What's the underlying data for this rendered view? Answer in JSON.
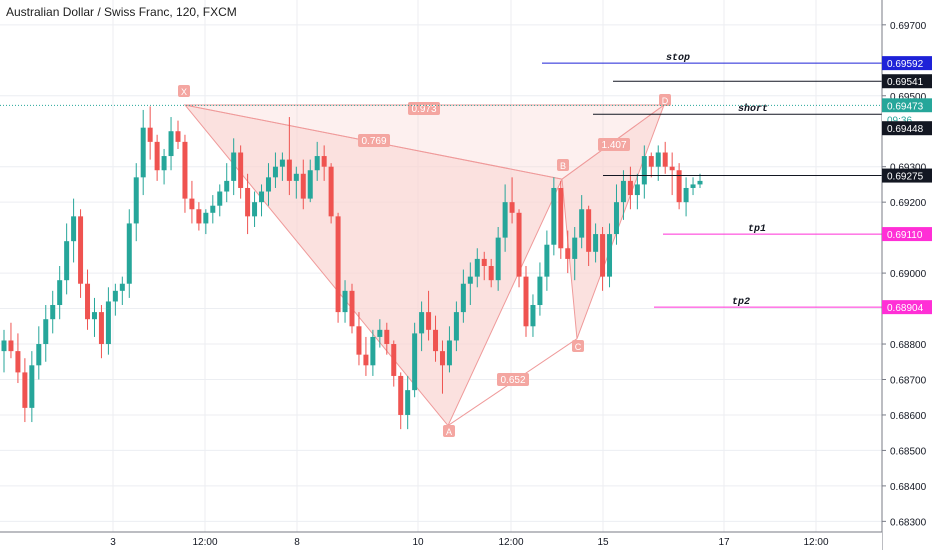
{
  "header": {
    "title": "Australian Dollar / Swiss Franc, 120, FXCM"
  },
  "colors": {
    "up": "#26a69a",
    "down": "#ef5350",
    "pattern_fill": "#f9d4d2",
    "pattern_stroke": "#ef9a9a",
    "stop": "#1e22d8",
    "tp": "#ff2fd6",
    "grid": "#eceef2",
    "axis_bg": "#ffffff"
  },
  "price_axis": {
    "ticks": [
      "0.69700",
      "0.69500",
      "0.69300",
      "0.69200",
      "0.69000",
      "0.68900",
      "0.68800",
      "0.68700",
      "0.68600",
      "0.68500",
      "0.68400",
      "0.68300"
    ],
    "hidden_note": "",
    "labels": [
      {
        "price": "0.69592",
        "bg": "#1e22d8",
        "fg": "#ffffff"
      },
      {
        "price": "0.69541",
        "bg": "#131722",
        "fg": "#ffffff"
      },
      {
        "price": "0.69473",
        "bg": "#26a69a",
        "fg": "#ffffff"
      },
      {
        "price": "09:36",
        "bg": "#ffffff",
        "fg": "#26a69a"
      },
      {
        "price": "0.69448",
        "bg": "#131722",
        "fg": "#ffffff"
      },
      {
        "price": "0.69275",
        "bg": "#131722",
        "fg": "#ffffff"
      },
      {
        "price": "0.69110",
        "bg": "#ff2fd6",
        "fg": "#ffffff"
      },
      {
        "price": "0.68904",
        "bg": "#ff2fd6",
        "fg": "#ffffff"
      }
    ]
  },
  "time_axis": {
    "ticks": [
      "3",
      "12:00",
      "8",
      "10",
      "12:00",
      "15",
      "17",
      "12:00"
    ]
  },
  "lines": [
    {
      "name": "stop",
      "label": "stop",
      "price": 0.69592,
      "color": "#1e22d8"
    },
    {
      "name": "entry-upper",
      "label": "",
      "price": 0.69541,
      "color": "#131722"
    },
    {
      "name": "short",
      "label": "short",
      "price": 0.69448,
      "color": "#131722"
    },
    {
      "name": "entry-lower",
      "label": "",
      "price": 0.69275,
      "color": "#131722"
    },
    {
      "name": "tp1",
      "label": "tp1",
      "price": 0.6911,
      "color": "#ff2fd6"
    },
    {
      "name": "tp2",
      "label": "tp2",
      "price": 0.68904,
      "color": "#ff2fd6"
    }
  ],
  "pattern": {
    "points": [
      {
        "label": "X",
        "price": 0.69474
      },
      {
        "label": "A",
        "price": 0.6857
      },
      {
        "label": "B",
        "price": 0.69265
      },
      {
        "label": "C",
        "price": 0.68815
      },
      {
        "label": "D",
        "price": 0.69474
      }
    ],
    "ratios": [
      "0.973",
      "0.769",
      "0.652",
      "1.407"
    ]
  },
  "chart_data": {
    "type": "candlestick",
    "title": "Australian Dollar / Swiss Franc, 120, FXCM",
    "ylim": [
      0.6827,
      0.6977
    ],
    "candles": [
      [
        0.6878,
        0.6884,
        0.6872,
        0.6881
      ],
      [
        0.6881,
        0.6886,
        0.6876,
        0.6878
      ],
      [
        0.6878,
        0.6883,
        0.6869,
        0.6872
      ],
      [
        0.6872,
        0.6876,
        0.6858,
        0.6862
      ],
      [
        0.6862,
        0.6878,
        0.6858,
        0.6874
      ],
      [
        0.6874,
        0.6885,
        0.687,
        0.688
      ],
      [
        0.688,
        0.6891,
        0.6875,
        0.6887
      ],
      [
        0.6887,
        0.6895,
        0.6883,
        0.6891
      ],
      [
        0.6891,
        0.6902,
        0.6887,
        0.6898
      ],
      [
        0.6898,
        0.6914,
        0.6894,
        0.6909
      ],
      [
        0.6909,
        0.6921,
        0.6903,
        0.6916
      ],
      [
        0.6916,
        0.6918,
        0.6893,
        0.6897
      ],
      [
        0.6897,
        0.6901,
        0.6884,
        0.6887
      ],
      [
        0.6887,
        0.6893,
        0.6882,
        0.6889
      ],
      [
        0.6889,
        0.6891,
        0.6876,
        0.688
      ],
      [
        0.688,
        0.6896,
        0.6877,
        0.6892
      ],
      [
        0.6892,
        0.6897,
        0.6888,
        0.6895
      ],
      [
        0.6895,
        0.6899,
        0.6891,
        0.6897
      ],
      [
        0.6897,
        0.6918,
        0.6893,
        0.6914
      ],
      [
        0.6914,
        0.6931,
        0.6909,
        0.6927
      ],
      [
        0.6927,
        0.6946,
        0.6922,
        0.6941
      ],
      [
        0.6941,
        0.6947,
        0.6932,
        0.6937
      ],
      [
        0.6937,
        0.6939,
        0.6926,
        0.6929
      ],
      [
        0.6929,
        0.6935,
        0.6925,
        0.6933
      ],
      [
        0.6933,
        0.6944,
        0.6929,
        0.694
      ],
      [
        0.694,
        0.6943,
        0.6935,
        0.6937
      ],
      [
        0.6937,
        0.6939,
        0.6917,
        0.6921
      ],
      [
        0.6921,
        0.6926,
        0.6914,
        0.6918
      ],
      [
        0.6918,
        0.692,
        0.6912,
        0.6914
      ],
      [
        0.6914,
        0.6918,
        0.6911,
        0.6917
      ],
      [
        0.6917,
        0.6922,
        0.6914,
        0.6919
      ],
      [
        0.6919,
        0.6925,
        0.6916,
        0.6923
      ],
      [
        0.6923,
        0.6931,
        0.692,
        0.6926
      ],
      [
        0.6926,
        0.6938,
        0.6922,
        0.6934
      ],
      [
        0.6934,
        0.6936,
        0.6921,
        0.6924
      ],
      [
        0.6924,
        0.6928,
        0.6911,
        0.6916
      ],
      [
        0.6916,
        0.6923,
        0.6913,
        0.692
      ],
      [
        0.692,
        0.6925,
        0.6916,
        0.6923
      ],
      [
        0.6923,
        0.6931,
        0.6919,
        0.6927
      ],
      [
        0.6927,
        0.6934,
        0.6924,
        0.693
      ],
      [
        0.693,
        0.6934,
        0.6926,
        0.6932
      ],
      [
        0.6932,
        0.6944,
        0.6922,
        0.6926
      ],
      [
        0.6926,
        0.693,
        0.6921,
        0.6928
      ],
      [
        0.6928,
        0.6932,
        0.6918,
        0.6921
      ],
      [
        0.6921,
        0.6932,
        0.692,
        0.6929
      ],
      [
        0.6929,
        0.6937,
        0.6926,
        0.6933
      ],
      [
        0.6933,
        0.6936,
        0.6926,
        0.693
      ],
      [
        0.693,
        0.6931,
        0.6914,
        0.6916
      ],
      [
        0.6916,
        0.6917,
        0.6886,
        0.6889
      ],
      [
        0.6889,
        0.6898,
        0.6886,
        0.6895
      ],
      [
        0.6895,
        0.6897,
        0.6883,
        0.6885
      ],
      [
        0.6885,
        0.6889,
        0.6874,
        0.6877
      ],
      [
        0.6877,
        0.6882,
        0.6871,
        0.6874
      ],
      [
        0.6874,
        0.6884,
        0.6871,
        0.6882
      ],
      [
        0.6882,
        0.6887,
        0.6879,
        0.6884
      ],
      [
        0.6884,
        0.6886,
        0.6877,
        0.688
      ],
      [
        0.688,
        0.6881,
        0.6868,
        0.6871
      ],
      [
        0.6871,
        0.6872,
        0.6856,
        0.686
      ],
      [
        0.686,
        0.6871,
        0.6856,
        0.6867
      ],
      [
        0.6867,
        0.6886,
        0.6865,
        0.6883
      ],
      [
        0.6883,
        0.6892,
        0.6878,
        0.6889
      ],
      [
        0.6889,
        0.6895,
        0.6881,
        0.6884
      ],
      [
        0.6884,
        0.6888,
        0.6875,
        0.6878
      ],
      [
        0.6878,
        0.6881,
        0.6866,
        0.6874
      ],
      [
        0.6874,
        0.6885,
        0.6872,
        0.6881
      ],
      [
        0.6881,
        0.6892,
        0.6878,
        0.6889
      ],
      [
        0.6889,
        0.6901,
        0.6886,
        0.6897
      ],
      [
        0.6897,
        0.6903,
        0.6891,
        0.6899
      ],
      [
        0.6899,
        0.6907,
        0.6896,
        0.6904
      ],
      [
        0.6904,
        0.6906,
        0.6898,
        0.6902
      ],
      [
        0.6902,
        0.6904,
        0.6896,
        0.6898
      ],
      [
        0.6898,
        0.6913,
        0.6895,
        0.691
      ],
      [
        0.691,
        0.6925,
        0.6906,
        0.692
      ],
      [
        0.692,
        0.6927,
        0.6914,
        0.6917
      ],
      [
        0.6917,
        0.6918,
        0.6896,
        0.6899
      ],
      [
        0.6899,
        0.6902,
        0.6882,
        0.6885
      ],
      [
        0.6885,
        0.6894,
        0.6882,
        0.6891
      ],
      [
        0.6891,
        0.6903,
        0.6888,
        0.6899
      ],
      [
        0.6899,
        0.6912,
        0.6895,
        0.6908
      ],
      [
        0.6908,
        0.6927,
        0.6905,
        0.6924
      ],
      [
        0.6924,
        0.6926,
        0.6904,
        0.6907
      ],
      [
        0.6907,
        0.6912,
        0.69,
        0.6904
      ],
      [
        0.6904,
        0.6913,
        0.6898,
        0.691
      ],
      [
        0.691,
        0.6922,
        0.6907,
        0.6918
      ],
      [
        0.6918,
        0.6919,
        0.6902,
        0.6906
      ],
      [
        0.6906,
        0.6914,
        0.6903,
        0.6911
      ],
      [
        0.6911,
        0.6913,
        0.6895,
        0.6899
      ],
      [
        0.6899,
        0.6914,
        0.6896,
        0.6911
      ],
      [
        0.6911,
        0.6925,
        0.6908,
        0.692
      ],
      [
        0.692,
        0.6929,
        0.6915,
        0.6926
      ],
      [
        0.6926,
        0.693,
        0.6918,
        0.6922
      ],
      [
        0.6922,
        0.6928,
        0.6918,
        0.6925
      ],
      [
        0.6925,
        0.6936,
        0.6921,
        0.6933
      ],
      [
        0.6933,
        0.6934,
        0.6927,
        0.693
      ],
      [
        0.693,
        0.6936,
        0.6926,
        0.6934
      ],
      [
        0.6934,
        0.6937,
        0.6928,
        0.693
      ],
      [
        0.693,
        0.6934,
        0.6922,
        0.6929
      ],
      [
        0.6929,
        0.6931,
        0.6918,
        0.692
      ],
      [
        0.692,
        0.6927,
        0.6916,
        0.6924
      ],
      [
        0.6924,
        0.6927,
        0.6922,
        0.6925
      ],
      [
        0.6925,
        0.6928,
        0.6924,
        0.6926
      ]
    ],
    "ohlc_order": "open, high, low, close"
  }
}
